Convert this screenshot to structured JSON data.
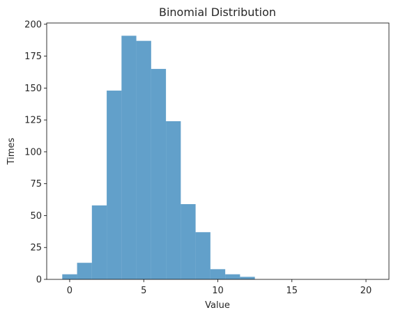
{
  "chart_data": {
    "type": "bar",
    "title": "Binomial Distribution",
    "xlabel": "Value",
    "ylabel": "Times",
    "xlim": [
      -1.55,
      21.55
    ],
    "ylim": [
      0,
      201
    ],
    "xticks": [
      0,
      5,
      10,
      15,
      20
    ],
    "yticks": [
      0,
      25,
      50,
      75,
      100,
      125,
      150,
      175,
      200
    ],
    "bar_color": "#1f77b4",
    "bar_opacity": 0.7,
    "bins": [
      {
        "x0": -0.5,
        "x1": 0.5,
        "value": 4
      },
      {
        "x0": 0.5,
        "x1": 1.5,
        "value": 13
      },
      {
        "x0": 1.5,
        "x1": 2.5,
        "value": 58
      },
      {
        "x0": 2.5,
        "x1": 3.5,
        "value": 148
      },
      {
        "x0": 3.5,
        "x1": 4.5,
        "value": 191
      },
      {
        "x0": 4.5,
        "x1": 5.5,
        "value": 187
      },
      {
        "x0": 5.5,
        "x1": 6.5,
        "value": 165
      },
      {
        "x0": 6.5,
        "x1": 7.5,
        "value": 124
      },
      {
        "x0": 7.5,
        "x1": 8.5,
        "value": 59
      },
      {
        "x0": 8.5,
        "x1": 9.5,
        "value": 37
      },
      {
        "x0": 9.5,
        "x1": 10.5,
        "value": 8
      },
      {
        "x0": 10.5,
        "x1": 11.5,
        "value": 4
      },
      {
        "x0": 11.5,
        "x1": 12.5,
        "value": 2
      },
      {
        "x0": 12.5,
        "x1": 13.5,
        "value": 0
      },
      {
        "x0": 13.5,
        "x1": 14.5,
        "value": 0
      },
      {
        "x0": 14.5,
        "x1": 15.5,
        "value": 0
      },
      {
        "x0": 15.5,
        "x1": 16.5,
        "value": 0
      },
      {
        "x0": 16.5,
        "x1": 17.5,
        "value": 0
      },
      {
        "x0": 17.5,
        "x1": 18.5,
        "value": 0
      },
      {
        "x0": 18.5,
        "x1": 19.5,
        "value": 0
      },
      {
        "x0": 19.5,
        "x1": 20.5,
        "value": 0
      }
    ],
    "grid": false,
    "legend": "none"
  }
}
